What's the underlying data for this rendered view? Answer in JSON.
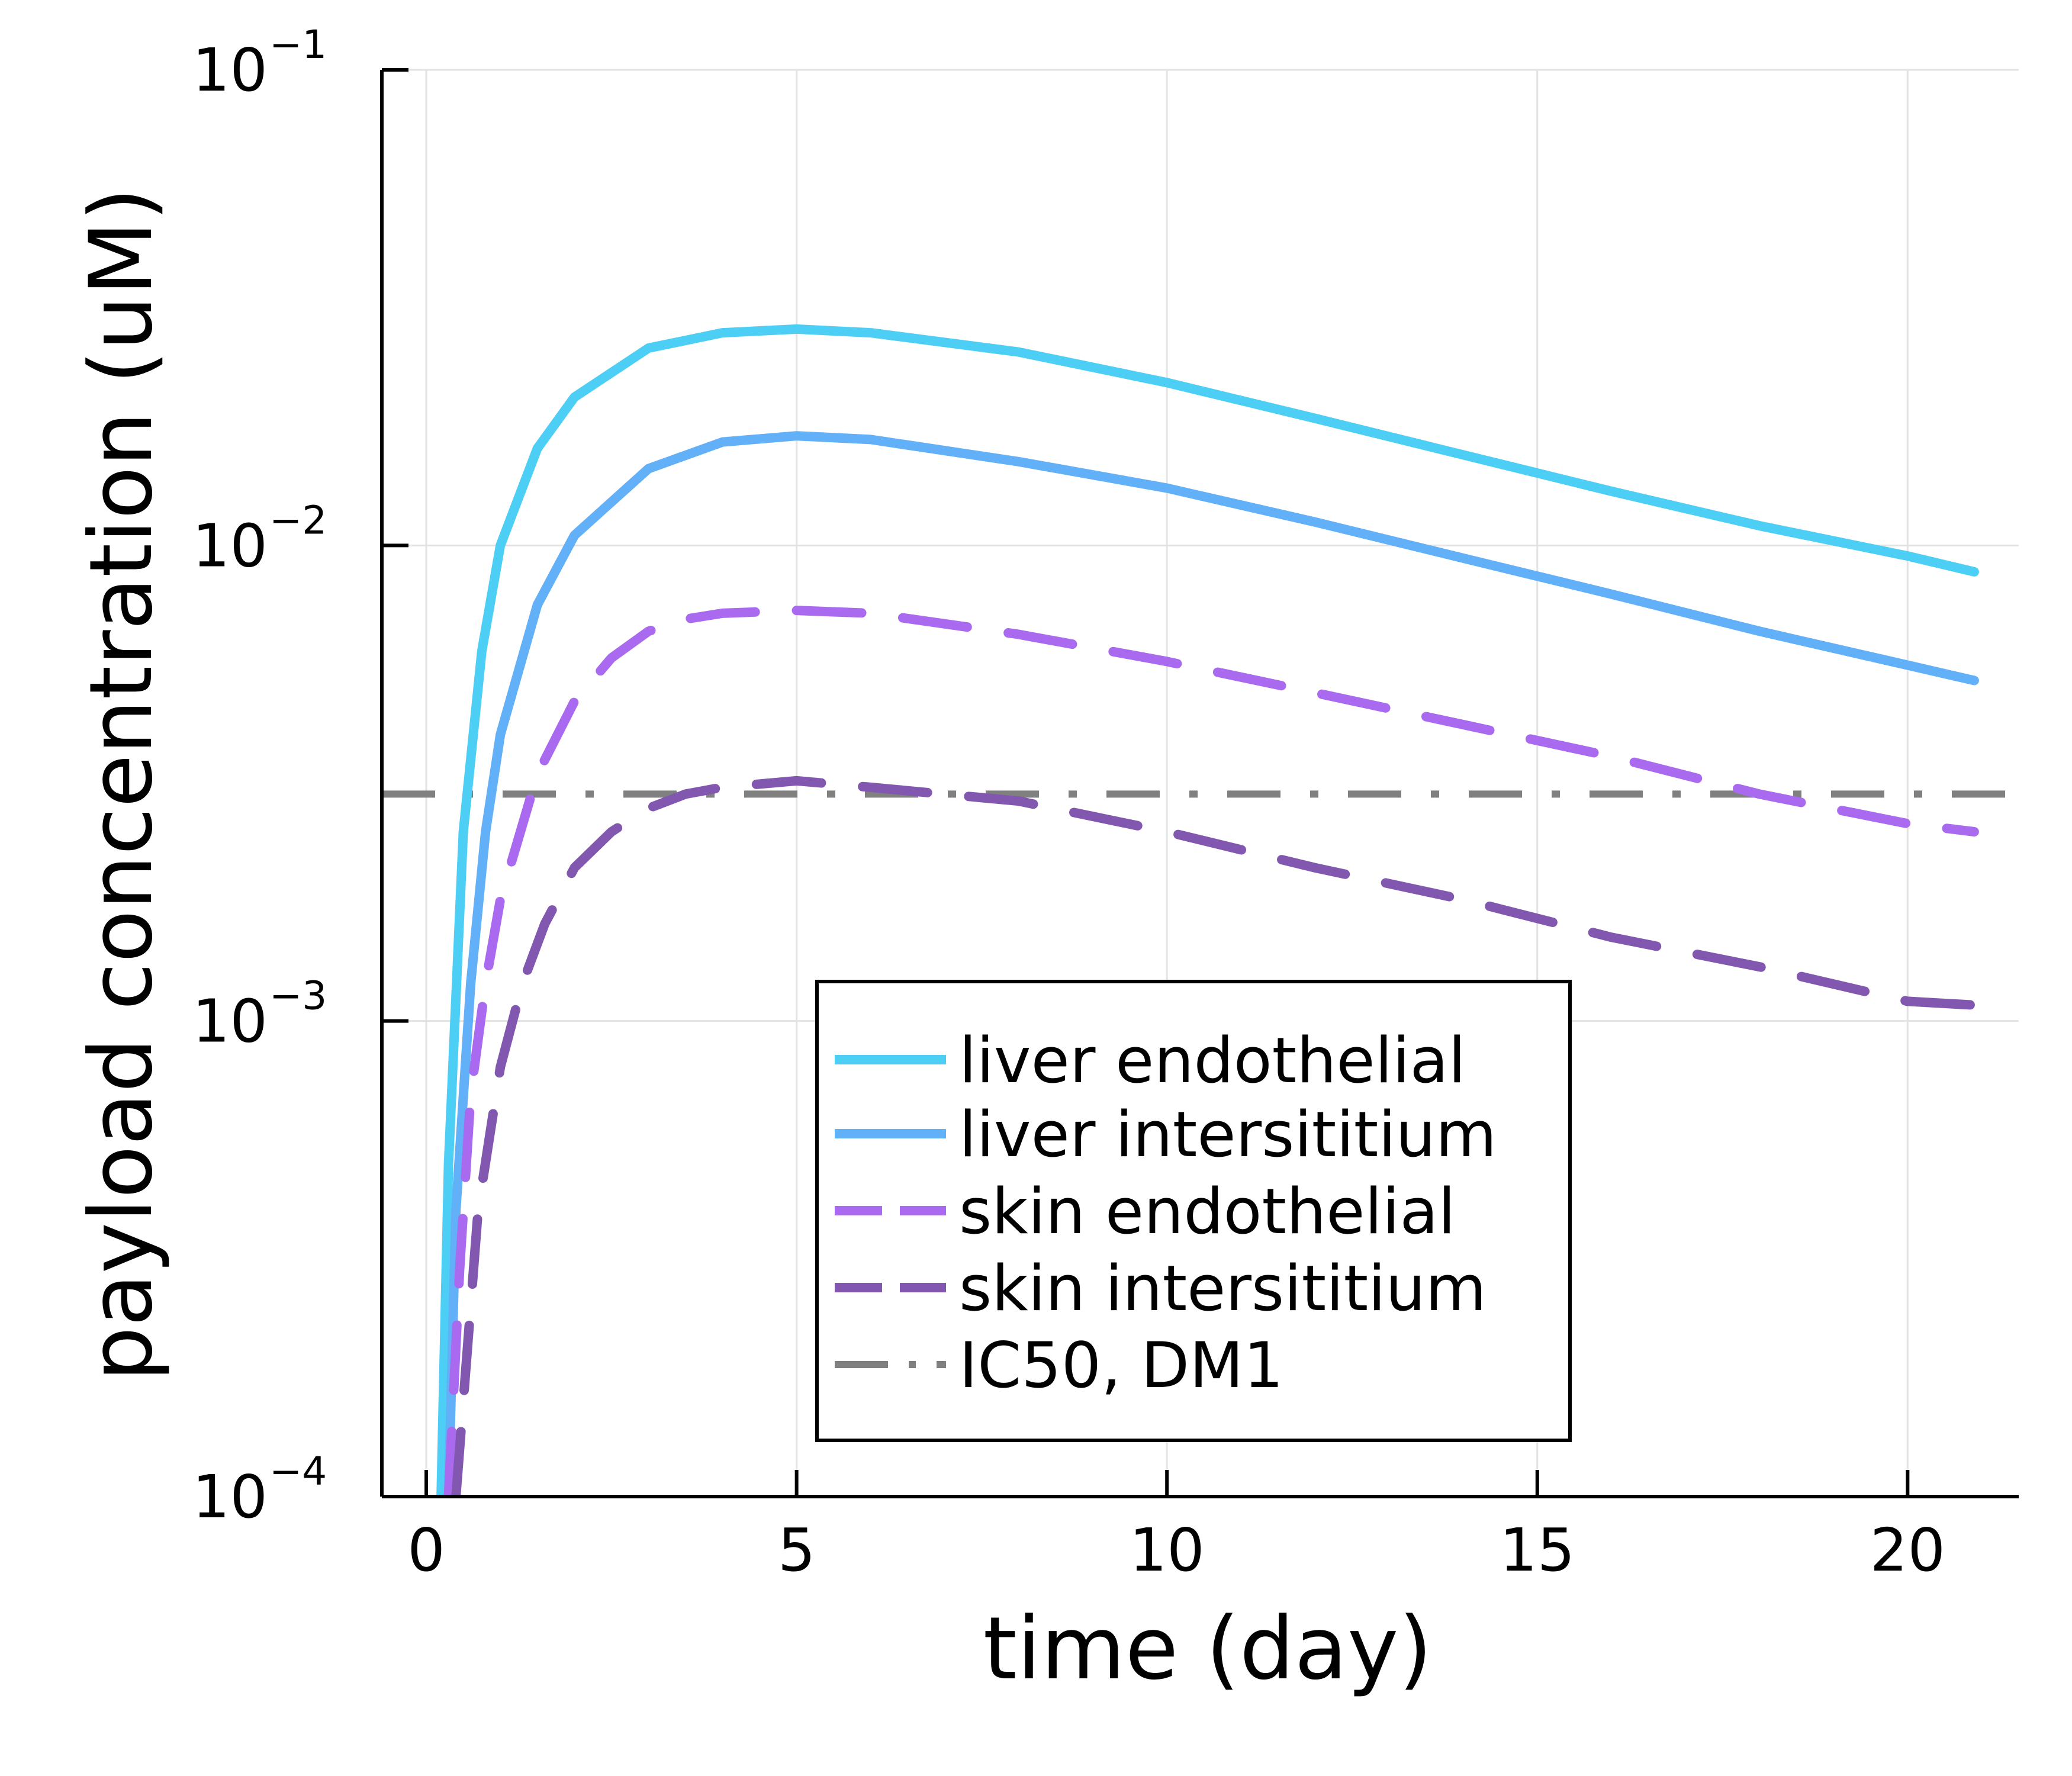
{
  "chart_data": {
    "type": "line",
    "xlabel": "time (day)",
    "ylabel": "payload concentration (uM)",
    "xlim": [
      -0.6,
      21.5
    ],
    "ylim_log10": [
      -4,
      -1
    ],
    "y_scale": "log",
    "x_ticks": [
      0,
      5,
      10,
      15,
      20
    ],
    "x_tick_labels": [
      "0",
      "5",
      "10",
      "15",
      "20"
    ],
    "y_ticks": [
      {
        "value": 0.0001,
        "base": "10",
        "exp": "−4"
      },
      {
        "value": 0.001,
        "base": "10",
        "exp": "−3"
      },
      {
        "value": 0.01,
        "base": "10",
        "exp": "−2"
      },
      {
        "value": 0.1,
        "base": "10",
        "exp": "−1"
      }
    ],
    "grid": true,
    "legend_position": "bottom-center",
    "series": [
      {
        "name": "liver endothelial",
        "color": "#4DCFF5",
        "style": "solid",
        "x": [
          0.2,
          0.3,
          0.5,
          0.75,
          1.0,
          1.5,
          2.0,
          3.0,
          4.0,
          5.0,
          6.0,
          8.0,
          10.0,
          12.0,
          14.0,
          16.0,
          18.0,
          20.0,
          20.9
        ],
        "y": [
          0.0001,
          0.0005,
          0.0025,
          0.006,
          0.01,
          0.016,
          0.0205,
          0.026,
          0.028,
          0.0285,
          0.028,
          0.0255,
          0.022,
          0.0185,
          0.0155,
          0.013,
          0.011,
          0.0095,
          0.0088
        ]
      },
      {
        "name": "liver intersititium",
        "color": "#62B0F8",
        "style": "solid",
        "x": [
          0.3,
          0.4,
          0.6,
          0.8,
          1.0,
          1.5,
          2.0,
          3.0,
          4.0,
          5.0,
          6.0,
          8.0,
          10.0,
          12.0,
          14.0,
          16.0,
          18.0,
          20.0,
          20.9
        ],
        "y": [
          0.0001,
          0.0004,
          0.0012,
          0.0025,
          0.004,
          0.0075,
          0.0105,
          0.0145,
          0.0165,
          0.017,
          0.0167,
          0.015,
          0.0132,
          0.0112,
          0.0094,
          0.0079,
          0.0066,
          0.0056,
          0.0052
        ]
      },
      {
        "name": "skin endothelial",
        "color": "#A96AF0",
        "style": "dashed",
        "x": [
          0.3,
          0.45,
          0.6,
          0.8,
          1.0,
          1.5,
          2.0,
          2.5,
          3.0,
          3.5,
          4.0,
          5.0,
          6.0,
          8.0,
          10.0,
          12.0,
          14.0,
          16.0,
          18.0,
          20.0,
          20.9
        ],
        "y": [
          0.0001,
          0.0003,
          0.0007,
          0.0012,
          0.0018,
          0.0033,
          0.0047,
          0.0058,
          0.0066,
          0.007,
          0.0072,
          0.0073,
          0.0072,
          0.0065,
          0.0057,
          0.0049,
          0.0042,
          0.0036,
          0.003,
          0.0026,
          0.0025
        ]
      },
      {
        "name": "skin intersititium",
        "color": "#8157AF",
        "style": "dashed",
        "x": [
          0.4,
          0.55,
          0.7,
          1.0,
          1.3,
          1.6,
          2.0,
          2.5,
          3.0,
          3.5,
          4.0,
          5.0,
          6.0,
          8.0,
          10.0,
          12.0,
          14.0,
          16.0,
          18.0,
          20.0,
          20.9
        ],
        "y": [
          0.0001,
          0.0002,
          0.0004,
          0.0008,
          0.0012,
          0.0016,
          0.0021,
          0.0025,
          0.0028,
          0.003,
          0.0031,
          0.0032,
          0.0031,
          0.0029,
          0.0025,
          0.0021,
          0.0018,
          0.0015,
          0.0013,
          0.0011,
          0.00108
        ]
      },
      {
        "name": "IC50, DM1",
        "color": "#808080",
        "style": "dashdot",
        "x": [
          -0.6,
          21.5
        ],
        "y": [
          0.003,
          0.003
        ]
      }
    ]
  }
}
